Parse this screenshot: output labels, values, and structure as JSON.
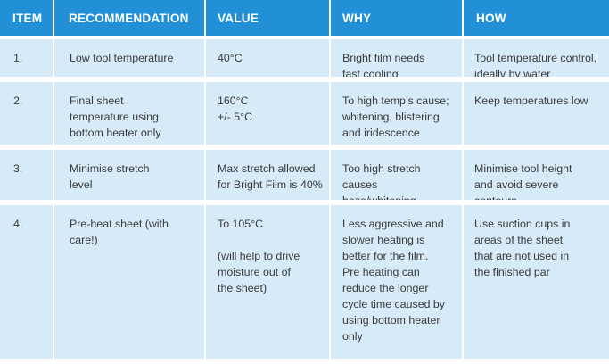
{
  "table": {
    "headers": [
      "ITEM",
      "RECOMMENDATION",
      "VALUE",
      "WHY",
      "HOW"
    ],
    "rows": [
      {
        "item": "1.",
        "recommendation": "Low tool temperature",
        "value": "40°C",
        "why": "Bright film needs\nfast cooling",
        "how": "Tool temperature control,\nideally by water"
      },
      {
        "item": "2.",
        "recommendation": "Final sheet\ntemperature using\nbottom heater only",
        "value": "160°C\n+/- 5°C",
        "why": "To high temp’s cause;\nwhitening, blistering\nand iridescence",
        "how": "Keep temperatures low"
      },
      {
        "item": "3.",
        "recommendation": "Minimise stretch\nlevel",
        "value": "Max stretch allowed\nfor Bright Film is 40%",
        "why": "Too high stretch causes\nhaze/whitening",
        "how": "Minimise tool height\nand avoid severe\ncontours"
      },
      {
        "item": "4.",
        "recommendation": "Pre-heat sheet (with\ncare!)",
        "value": "To 105°C\n\n(will help to drive\nmoisture out of\nthe sheet)",
        "why": "Less aggressive and\nslower heating is\nbetter for the film.\nPre heating can\nreduce the longer\ncycle time caused by\nusing bottom heater\nonly",
        "how": "Use suction cups in\nareas of the sheet\nthat are not used in\nthe finished par"
      }
    ]
  },
  "colors": {
    "header_bg": "#2190d6",
    "header_text": "#ffffff",
    "row_bg": "#d6eaf8",
    "body_text": "#3a3a3a"
  }
}
